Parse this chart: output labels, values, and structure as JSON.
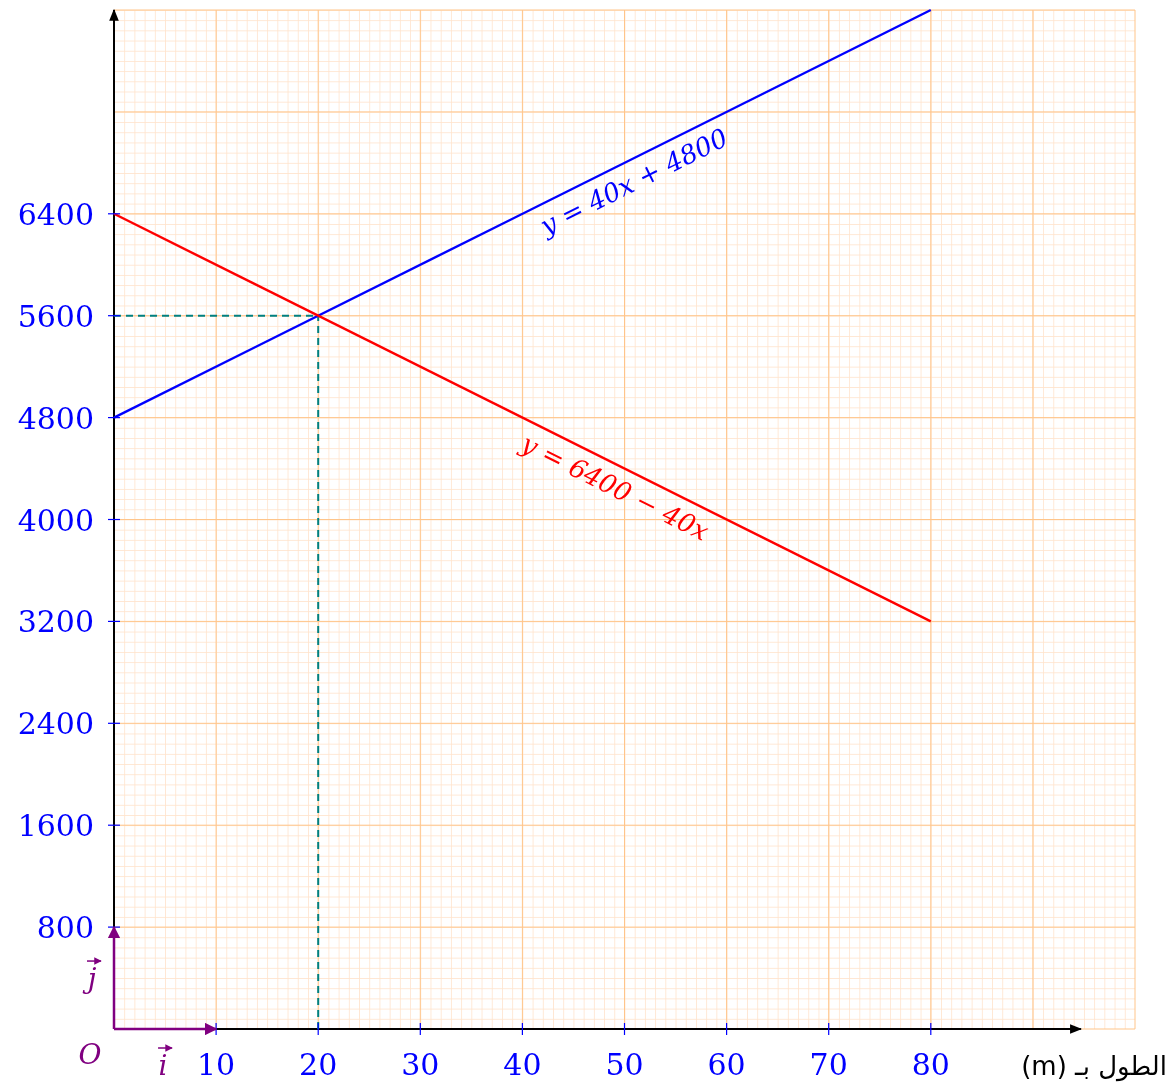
{
  "chart_data": {
    "type": "line",
    "xlabel": "الطول بـ (m)",
    "x": [
      0,
      80
    ],
    "series": [
      {
        "color": "#0000ff",
        "values": [
          4800,
          8000
        ]
      },
      {
        "color": "#ff0000",
        "values": [
          6400,
          3200
        ]
      }
    ],
    "xlim": [
      0,
      100
    ],
    "ylim": [
      0,
      8000
    ],
    "xticks": [
      10,
      20,
      30,
      40,
      50,
      60,
      70,
      80
    ],
    "yticks": [
      800,
      1600,
      2400,
      3200,
      4000,
      4800,
      5600,
      6400
    ],
    "grid": true,
    "ref_lines": [
      {
        "axis": "x",
        "value": 20,
        "color": "#008080",
        "line_style": "dashed"
      },
      {
        "axis": "y",
        "value": 5600,
        "color": "#008080",
        "line_style": "dashed"
      }
    ],
    "annotations": [
      {
        "text": "y = 40x + 4800",
        "x": 50,
        "y": 6800
      },
      {
        "text": "y = 6400 − 40x",
        "x": 50,
        "y": 4400
      },
      "O",
      "i",
      "j"
    ]
  }
}
